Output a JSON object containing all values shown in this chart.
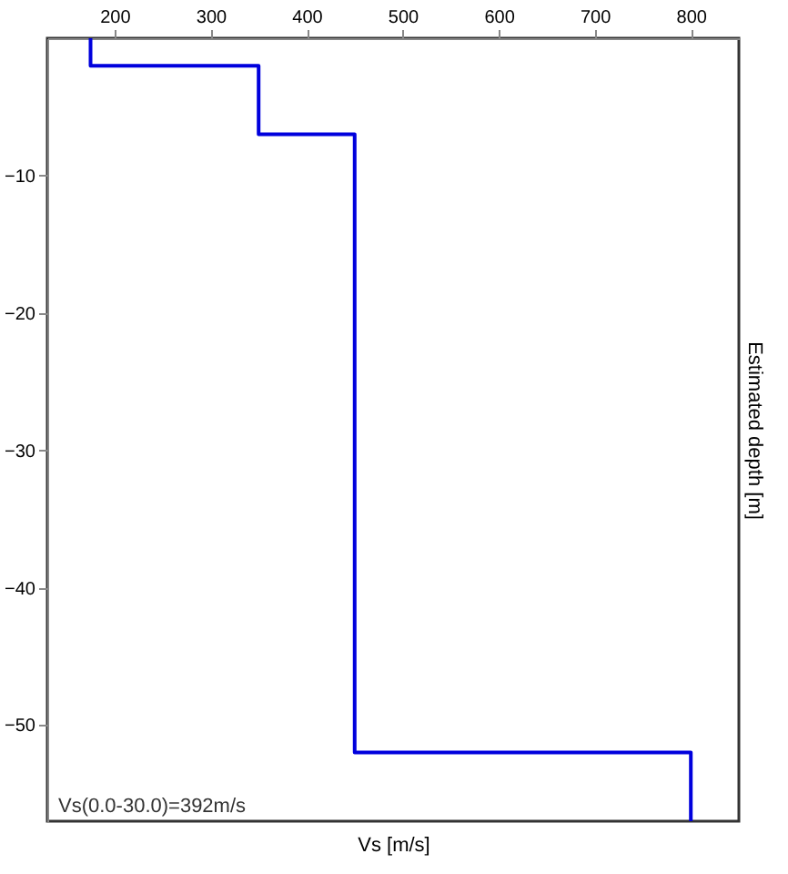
{
  "chart_data": {
    "type": "line",
    "xlabel": "Vs [m/s]",
    "ylabel": "Estimated depth [m]",
    "series": [
      {
        "color": "#0000dd",
        "x": [
          175,
          175,
          350,
          350,
          450,
          450,
          800,
          800
        ],
        "values": [
          0,
          -2,
          -2,
          -7,
          -7,
          -52,
          -52,
          -57
        ]
      }
    ],
    "xlim": [
      130,
      850
    ],
    "xticks": [
      200,
      300,
      400,
      500,
      600,
      700,
      800
    ],
    "ylim": [
      -57,
      0
    ],
    "yticks": [
      -10,
      -20,
      -30,
      -40,
      -50
    ],
    "grid": false,
    "marker": "none",
    "line_style": "solid",
    "annotations": [
      "Vs(0.0-30.0)=392m/s"
    ]
  }
}
